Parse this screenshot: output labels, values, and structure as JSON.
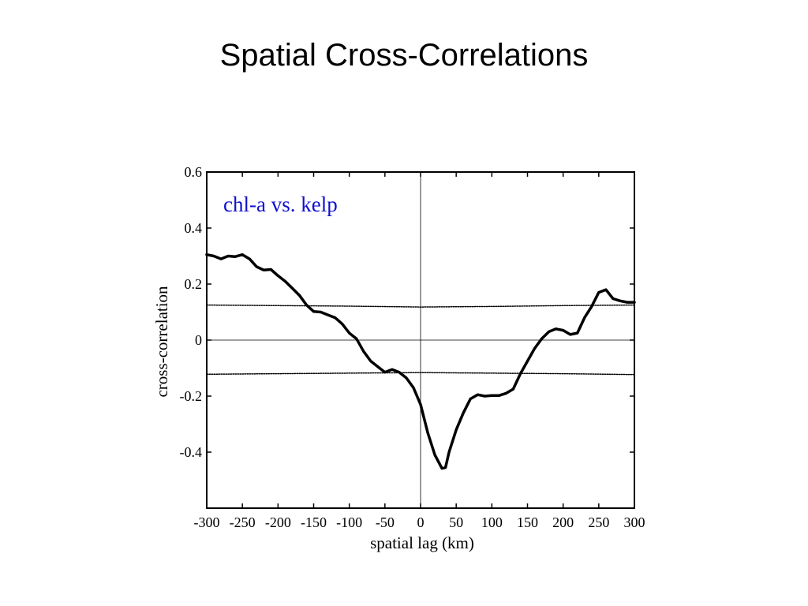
{
  "slide": {
    "title": "Spatial Cross-Correlations"
  },
  "colors": {
    "annotation": "#1010d0",
    "line": "#000000",
    "axis": "#000000"
  },
  "chart_data": {
    "type": "line",
    "xlabel": "spatial lag (km)",
    "ylabel": "cross-correlation",
    "xlim": [
      -300,
      300
    ],
    "ylim": [
      -0.6,
      0.6
    ],
    "xticks": [
      -300,
      -250,
      -200,
      -150,
      -100,
      -50,
      0,
      50,
      100,
      150,
      200,
      250,
      300
    ],
    "xtick_labels": [
      "-300",
      "-250",
      "-200",
      "-150",
      "-100",
      "-50",
      "0",
      "50",
      "100",
      "150",
      "200",
      "250",
      "300"
    ],
    "yticks": [
      0.6,
      0.4,
      0.2,
      0,
      -0.2,
      -0.4
    ],
    "ytick_labels": [
      "0.6",
      "0.4",
      "0.2",
      "0",
      "-0.2",
      "-0.4"
    ],
    "annotation": "chl-a vs. kelp",
    "series": [
      {
        "style": "solid-thick",
        "x": [
          -300,
          -290,
          -280,
          -270,
          -260,
          -250,
          -240,
          -230,
          -220,
          -210,
          -200,
          -190,
          -180,
          -170,
          -160,
          -150,
          -140,
          -130,
          -120,
          -110,
          -100,
          -90,
          -80,
          -70,
          -60,
          -50,
          -40,
          -30,
          -20,
          -10,
          0,
          10,
          20,
          30,
          35,
          40,
          50,
          60,
          70,
          80,
          90,
          100,
          110,
          120,
          130,
          140,
          150,
          160,
          170,
          180,
          190,
          200,
          210,
          220,
          230,
          240,
          250,
          260,
          270,
          280,
          290,
          300
        ],
        "y": [
          0.305,
          0.3,
          0.29,
          0.3,
          0.298,
          0.305,
          0.29,
          0.262,
          0.25,
          0.252,
          0.23,
          0.21,
          0.185,
          0.16,
          0.125,
          0.102,
          0.1,
          0.09,
          0.08,
          0.058,
          0.025,
          0.005,
          -0.04,
          -0.075,
          -0.095,
          -0.115,
          -0.105,
          -0.115,
          -0.135,
          -0.17,
          -0.23,
          -0.33,
          -0.41,
          -0.458,
          -0.455,
          -0.4,
          -0.32,
          -0.26,
          -0.21,
          -0.195,
          -0.2,
          -0.198,
          -0.198,
          -0.19,
          -0.175,
          -0.12,
          -0.075,
          -0.03,
          0.005,
          0.03,
          0.04,
          0.035,
          0.02,
          0.025,
          0.08,
          0.12,
          0.17,
          0.18,
          0.148,
          0.14,
          0.135,
          0.135
        ]
      },
      {
        "style": "dotted",
        "x": [
          -300,
          -200,
          -100,
          0,
          100,
          200,
          300
        ],
        "y": [
          0.125,
          0.123,
          0.121,
          0.118,
          0.12,
          0.123,
          0.125
        ]
      },
      {
        "style": "dotted",
        "x": [
          -300,
          -200,
          -100,
          0,
          100,
          200,
          300
        ],
        "y": [
          -0.122,
          -0.12,
          -0.118,
          -0.116,
          -0.118,
          -0.12,
          -0.123
        ]
      }
    ],
    "reference_lines": {
      "x": [
        0
      ],
      "y": [
        0
      ]
    },
    "grid": false
  }
}
